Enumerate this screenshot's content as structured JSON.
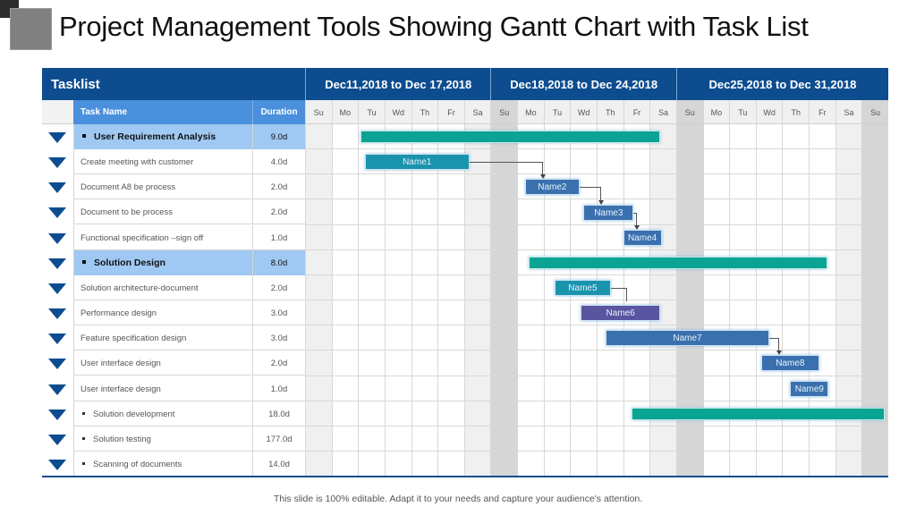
{
  "title": "Project Management Tools Showing Gantt Chart with Task List",
  "footer": "This slide is 100% editable. Adapt it to your needs and capture your audience's attention.",
  "colors": {
    "header_dark_blue": "#0d4d8f",
    "header_light_blue": "#4a90dd",
    "summary_row": "#9fc8f2",
    "summary_bar": "#0aa394",
    "task_teal": "#1a94ad",
    "task_blue": "#3a70ae",
    "task_purple": "#5a55a0",
    "weekend_sat": "#f0f0f0",
    "weekend_sun": "#d6d6d6"
  },
  "tasklist": {
    "header": "Tasklist",
    "col_task_name": "Task Name",
    "col_duration": "Duration",
    "rows": [
      {
        "name": "User Requirement Analysis",
        "duration": "9.0d",
        "summary": true,
        "bullet": true
      },
      {
        "name": "Create meeting with customer",
        "duration": "4.0d",
        "summary": false,
        "bullet": false
      },
      {
        "name": "Document A8 be process",
        "duration": "2.0d",
        "summary": false,
        "bullet": false
      },
      {
        "name": "Document to be  process",
        "duration": "2.0d",
        "summary": false,
        "bullet": false
      },
      {
        "name": "Functional specification –sign off",
        "duration": "1.0d",
        "summary": false,
        "bullet": false
      },
      {
        "name": "Solution Design",
        "duration": "8.0d",
        "summary": true,
        "bullet": true
      },
      {
        "name": "Solution architecture-document",
        "duration": "2.0d",
        "summary": false,
        "bullet": false
      },
      {
        "name": "Performance design",
        "duration": "3.0d",
        "summary": false,
        "bullet": false
      },
      {
        "name": "Feature specification design",
        "duration": "3.0d",
        "summary": false,
        "bullet": false
      },
      {
        "name": "User interface design",
        "duration": "2.0d",
        "summary": false,
        "bullet": false
      },
      {
        "name": "User interface design",
        "duration": "1.0d",
        "summary": false,
        "bullet": false
      },
      {
        "name": "Solution development",
        "duration": "18.0d",
        "summary": false,
        "bullet": true
      },
      {
        "name": "Solution testing",
        "duration": "177.0d",
        "summary": false,
        "bullet": true
      },
      {
        "name": "Scanning of documents",
        "duration": "14.0d",
        "summary": false,
        "bullet": true
      }
    ]
  },
  "weeks": [
    {
      "label": "Dec11,2018 to Dec 17,2018",
      "days": 7
    },
    {
      "label": "Dec18,2018 to Dec 24,2018",
      "days": 7
    },
    {
      "label": "Dec25,2018 to Dec 31,2018",
      "days": 8
    }
  ],
  "days": [
    "Su",
    "Mo",
    "Tu",
    "Wd",
    "Th",
    "Fr",
    "Sa",
    "Su",
    "Mo",
    "Tu",
    "Wd",
    "Th",
    "Fr",
    "Sa",
    "Su",
    "Mo",
    "Tu",
    "Wd",
    "Th",
    "Fr",
    "Sa",
    "Su"
  ],
  "chart_data": {
    "type": "gantt",
    "title": "Project Management Tools Showing Gantt Chart with Task List",
    "x_axis": {
      "unit": "day",
      "range": [
        "Dec 11, 2018",
        "Dec 31, 2018"
      ],
      "week_labels": [
        "Dec11,2018 to Dec 17,2018",
        "Dec18,2018 to Dec 24,2018",
        "Dec25,2018 to Dec 31,2018"
      ],
      "day_labels": [
        "Su",
        "Mo",
        "Tu",
        "Wd",
        "Th",
        "Fr",
        "Sa",
        "Su",
        "Mo",
        "Tu",
        "Wd",
        "Th",
        "Fr",
        "Sa",
        "Su",
        "Mo",
        "Tu",
        "Wd",
        "Th",
        "Fr",
        "Sa",
        "Su"
      ]
    },
    "bars": [
      {
        "row": 0,
        "label": "",
        "start_col": 2.1,
        "end_col": 13.4,
        "kind": "summary",
        "color": "#0aa394"
      },
      {
        "row": 1,
        "label": "Name1",
        "start_col": 2.25,
        "end_col": 6.2,
        "kind": "task",
        "color": "#1a94ad"
      },
      {
        "row": 2,
        "label": "Name2",
        "start_col": 8.3,
        "end_col": 10.35,
        "kind": "task",
        "color": "#3a70ae"
      },
      {
        "row": 3,
        "label": "Name3",
        "start_col": 10.5,
        "end_col": 12.4,
        "kind": "task",
        "color": "#3a70ae"
      },
      {
        "row": 4,
        "label": "Name4",
        "start_col": 12.0,
        "end_col": 13.45,
        "kind": "task",
        "color": "#3a70ae"
      },
      {
        "row": 5,
        "label": "",
        "start_col": 8.45,
        "end_col": 19.7,
        "kind": "summary",
        "color": "#0aa394"
      },
      {
        "row": 6,
        "label": "Name5",
        "start_col": 9.4,
        "end_col": 11.55,
        "kind": "task",
        "color": "#1a94ad"
      },
      {
        "row": 7,
        "label": "Name6",
        "start_col": 10.4,
        "end_col": 13.4,
        "kind": "task",
        "color": "#5a55a0"
      },
      {
        "row": 8,
        "label": "Name7",
        "start_col": 11.35,
        "end_col": 17.5,
        "kind": "task",
        "color": "#3a70ae"
      },
      {
        "row": 9,
        "label": "Name8",
        "start_col": 17.2,
        "end_col": 19.4,
        "kind": "task",
        "color": "#3a70ae"
      },
      {
        "row": 10,
        "label": "Name9",
        "start_col": 18.3,
        "end_col": 19.75,
        "kind": "task",
        "color": "#3a70ae"
      },
      {
        "row": 11,
        "label": "",
        "start_col": 12.3,
        "end_col": 21.85,
        "kind": "summary",
        "color": "#0aa394"
      }
    ],
    "dependencies": [
      {
        "from": "Name1",
        "to": "Name2"
      },
      {
        "from": "Name2",
        "to": "Name3"
      },
      {
        "from": "Name3",
        "to": "Name4"
      },
      {
        "from": "Name5",
        "to": "Name6"
      },
      {
        "from": "Name7",
        "to": "Name8"
      }
    ],
    "grid": true
  }
}
